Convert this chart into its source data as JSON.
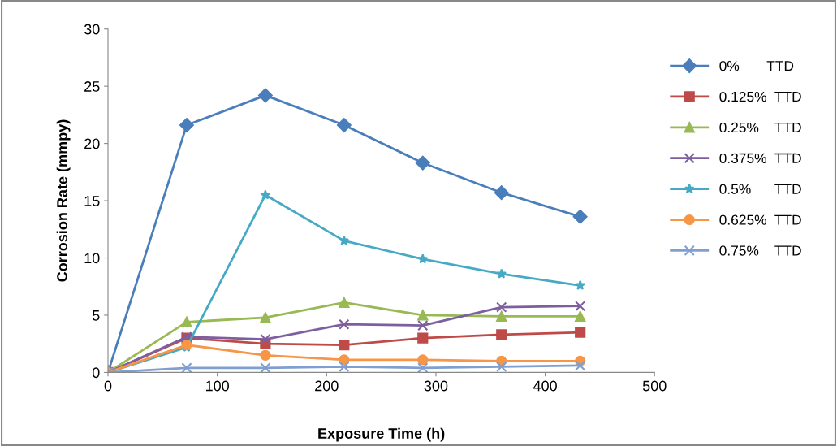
{
  "chart_data": {
    "type": "line",
    "xlabel": "Exposure Time (h)",
    "ylabel": "Corrosion Rate (mmpy)",
    "x": [
      0,
      72,
      144,
      216,
      288,
      360,
      432
    ],
    "xlim": [
      0,
      500
    ],
    "xticks": [
      0,
      100,
      200,
      300,
      400,
      500
    ],
    "ylim": [
      0,
      30
    ],
    "yticks": [
      0,
      5,
      10,
      15,
      20,
      25,
      30
    ],
    "grid": false,
    "legend": "right",
    "series": [
      {
        "name": "0%       TTD",
        "color": "#4a7ebb",
        "marker": "diamond",
        "values": [
          0,
          21.6,
          24.2,
          21.6,
          18.3,
          15.7,
          13.6
        ]
      },
      {
        "name": "0.125%  TTD",
        "color": "#be4b48",
        "marker": "square",
        "values": [
          0,
          3.0,
          2.5,
          2.4,
          3.0,
          3.3,
          3.5
        ]
      },
      {
        "name": "0.25%    TTD",
        "color": "#98b954",
        "marker": "triangle",
        "values": [
          0,
          4.4,
          4.8,
          6.1,
          5.0,
          4.9,
          4.9
        ]
      },
      {
        "name": "0.375%  TTD",
        "color": "#7d5fa0",
        "marker": "cross",
        "values": [
          0,
          3.1,
          2.9,
          4.2,
          4.1,
          5.7,
          5.8
        ]
      },
      {
        "name": "0.5%      TTD",
        "color": "#46aac5",
        "marker": "star",
        "values": [
          0,
          2.2,
          15.5,
          11.5,
          9.9,
          8.6,
          7.6
        ]
      },
      {
        "name": "0.625%  TTD",
        "color": "#f79646",
        "marker": "circle",
        "values": [
          0,
          2.4,
          1.5,
          1.1,
          1.1,
          1.0,
          1.0
        ]
      },
      {
        "name": "0.75%    TTD",
        "color": "#7f9fd0",
        "marker": "cross",
        "values": [
          0,
          0.4,
          0.4,
          0.5,
          0.4,
          0.5,
          0.6
        ]
      }
    ]
  }
}
